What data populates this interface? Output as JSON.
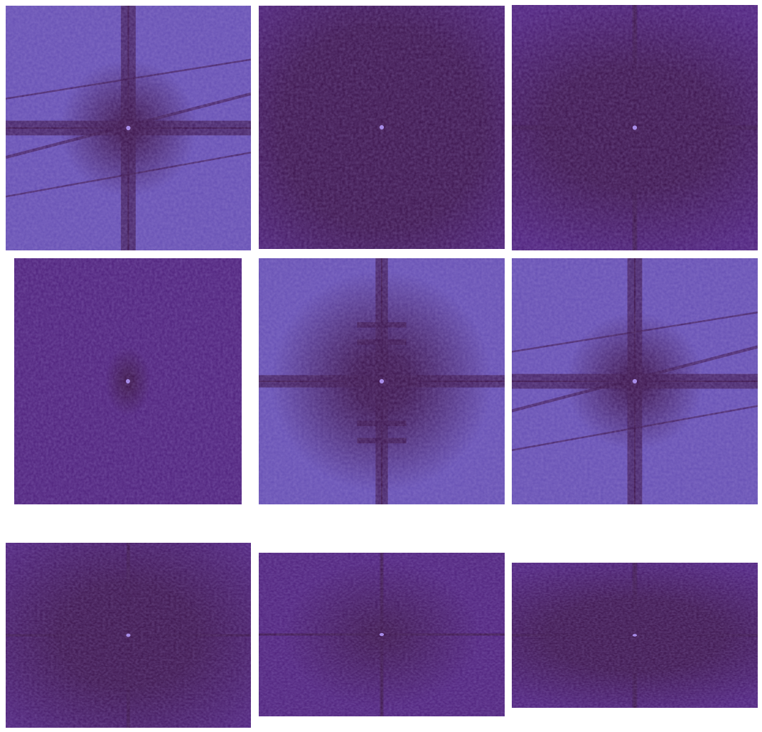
{
  "figure": {
    "background": "#ffffff",
    "palette": {
      "dark": "#3a1249",
      "mid": "#4d1f7a",
      "light": "#6650b4",
      "bright_center": "#a78de8"
    },
    "panels": [
      {
        "id": "r1c1",
        "pattern": "cross-with-diagonal-streaks",
        "bright_periphery": true,
        "dark_core": "small",
        "axis_lines": true,
        "diagonal_streaks": true
      },
      {
        "id": "r1c2",
        "pattern": "radial-dark",
        "bright_periphery": false,
        "dark_core": "large",
        "axis_lines": false,
        "diagonal_streaks": false
      },
      {
        "id": "r1c3",
        "pattern": "horizontal-elliptical-dark",
        "bright_periphery": false,
        "dark_core": "wide",
        "axis_lines": true,
        "diagonal_streaks": false
      },
      {
        "id": "r2c1",
        "pattern": "uniform-noise-small-dark-core",
        "bright_periphery": false,
        "dark_core": "tiny",
        "axis_lines": false,
        "diagonal_streaks": false
      },
      {
        "id": "r2c2",
        "pattern": "cross-with-horizontal-bands",
        "bright_periphery": true,
        "dark_core": "medium",
        "axis_lines": true,
        "diagonal_streaks": false
      },
      {
        "id": "r2c3",
        "pattern": "cross-with-diagonal-streaks",
        "bright_periphery": true,
        "dark_core": "small",
        "axis_lines": true,
        "diagonal_streaks": true
      },
      {
        "id": "r3c1",
        "pattern": "elliptical-dark-cross",
        "bright_periphery": false,
        "dark_core": "large",
        "axis_lines": true,
        "diagonal_streaks": false
      },
      {
        "id": "r3c2",
        "pattern": "noise-cross-small-core",
        "bright_periphery": false,
        "dark_core": "small",
        "axis_lines": true,
        "diagonal_streaks": false
      },
      {
        "id": "r3c3",
        "pattern": "horizontal-elliptical-dark",
        "bright_periphery": false,
        "dark_core": "wide",
        "axis_lines": true,
        "diagonal_streaks": false
      }
    ]
  }
}
